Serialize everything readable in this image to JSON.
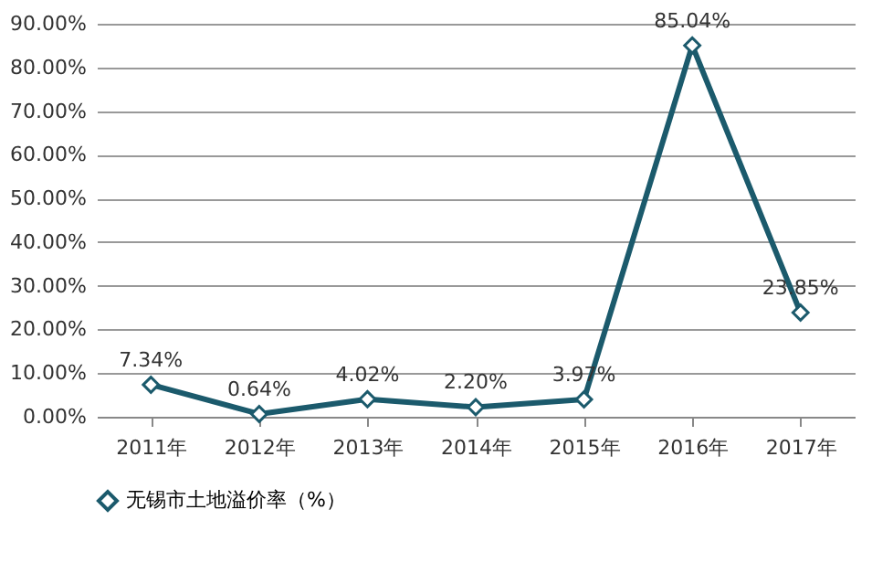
{
  "chart_data": {
    "type": "line",
    "categories": [
      "2011年",
      "2012年",
      "2013年",
      "2014年",
      "2015年",
      "2016年",
      "2017年"
    ],
    "series": [
      {
        "name": "无锡市土地溢价率（%）",
        "color": "#1b5a6c",
        "values": [
          7.34,
          0.64,
          4.02,
          2.2,
          3.97,
          85.04,
          23.85
        ],
        "value_labels": [
          "7.34%",
          "0.64%",
          "4.02%",
          "2.20%",
          "3.97%",
          "85.04%",
          "23.85%"
        ]
      }
    ],
    "ylim": [
      0,
      90
    ],
    "yticks": [
      {
        "value": 0,
        "label": "0.00%"
      },
      {
        "value": 10,
        "label": "10.00%"
      },
      {
        "value": 20,
        "label": "20.00%"
      },
      {
        "value": 30,
        "label": "30.00%"
      },
      {
        "value": 40,
        "label": "40.00%"
      },
      {
        "value": 50,
        "label": "50.00%"
      },
      {
        "value": 60,
        "label": "60.00%"
      },
      {
        "value": 70,
        "label": "70.00%"
      },
      {
        "value": 80,
        "label": "80.00%"
      },
      {
        "value": 90,
        "label": "90.00%"
      }
    ],
    "grid": "y",
    "legend": "bottom",
    "marker": "diamond",
    "line_style": "solid"
  }
}
